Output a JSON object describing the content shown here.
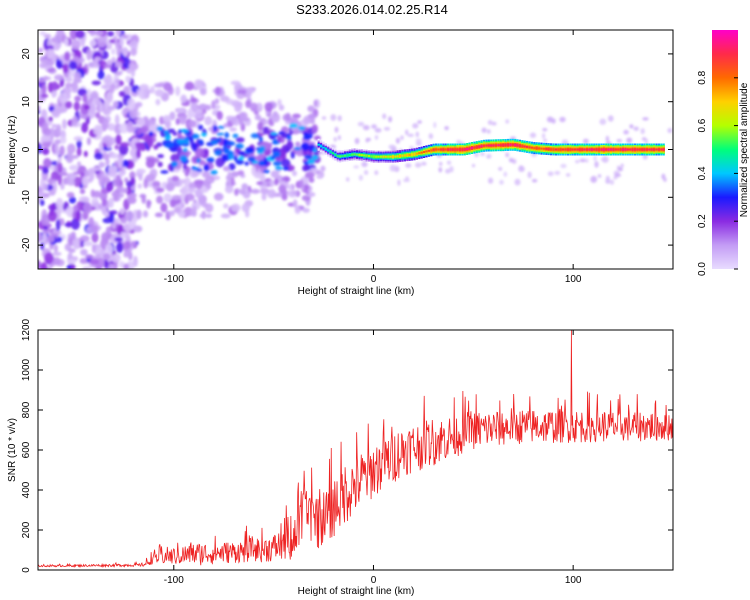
{
  "title": "S233.2026.014.02.25.R14",
  "chart_data": [
    {
      "type": "heatmap",
      "name": "spectrogram",
      "xlabel": "Height of straight line (km)",
      "ylabel": "Frequency (Hz)",
      "xlim": [
        -168,
        150
      ],
      "ylim": [
        -25,
        25
      ],
      "xticks": [
        -100,
        0,
        100
      ],
      "xtick_labels": [
        "-100",
        "0",
        "100"
      ],
      "yticks": [
        -20,
        -10,
        0,
        10,
        20
      ],
      "ytick_labels": [
        "-20",
        "-10",
        "0",
        "10",
        "20"
      ],
      "colorbar": {
        "label": "Normalized spectral amplitude",
        "range": [
          0,
          1
        ],
        "ticks": [
          0.0,
          0.2,
          0.4,
          0.6,
          0.8
        ],
        "tick_labels": [
          "0.0",
          "0.2",
          "0.4",
          "0.6",
          "0.8"
        ],
        "colors": [
          "#e8dcff",
          "#c39cf5",
          "#8a2be2",
          "#1a1aff",
          "#00c8ff",
          "#00ff7a",
          "#b4ff00",
          "#ffd000",
          "#ff6a00",
          "#ff2a4a",
          "#ff00c8"
        ]
      },
      "ridge": [
        {
          "x": -28,
          "f": 1.0,
          "a": 0.35
        },
        {
          "x": -18,
          "f": -1.5,
          "a": 0.45
        },
        {
          "x": -10,
          "f": -1.0,
          "a": 0.5
        },
        {
          "x": 0,
          "f": -1.5,
          "a": 0.55
        },
        {
          "x": 10,
          "f": -1.5,
          "a": 0.62
        },
        {
          "x": 20,
          "f": -1.0,
          "a": 0.68
        },
        {
          "x": 30,
          "f": 0.0,
          "a": 0.8
        },
        {
          "x": 45,
          "f": 0.0,
          "a": 0.9
        },
        {
          "x": 55,
          "f": 0.8,
          "a": 0.85
        },
        {
          "x": 70,
          "f": 1.0,
          "a": 0.88
        },
        {
          "x": 80,
          "f": 0.3,
          "a": 0.8
        },
        {
          "x": 90,
          "f": 0.0,
          "a": 0.82
        },
        {
          "x": 100,
          "f": 0.0,
          "a": 0.85
        },
        {
          "x": 115,
          "f": 0.0,
          "a": 0.88
        },
        {
          "x": 130,
          "f": 0.0,
          "a": 0.86
        },
        {
          "x": 145,
          "f": 0.0,
          "a": 0.84
        }
      ]
    },
    {
      "type": "line",
      "name": "snr",
      "xlabel": "Height of straight line (km)",
      "ylabel": "SNR (10 * v/v)",
      "xlim": [
        -168,
        150
      ],
      "ylim": [
        0,
        1200
      ],
      "xticks": [
        -100,
        0,
        100
      ],
      "xtick_labels": [
        "-100",
        "0",
        "100"
      ],
      "yticks": [
        0,
        200,
        400,
        600,
        800,
        1000,
        1200
      ],
      "ytick_labels": [
        "0",
        "200",
        "400",
        "600",
        "800",
        "1000",
        "1200"
      ],
      "color": "#ee2222",
      "envelope": [
        {
          "x": -168,
          "mean": 20,
          "spread": 8
        },
        {
          "x": -115,
          "mean": 25,
          "spread": 15
        },
        {
          "x": -110,
          "mean": 60,
          "spread": 60
        },
        {
          "x": -90,
          "mean": 80,
          "spread": 120
        },
        {
          "x": -70,
          "mean": 90,
          "spread": 110
        },
        {
          "x": -50,
          "mean": 110,
          "spread": 140
        },
        {
          "x": -40,
          "mean": 160,
          "spread": 220
        },
        {
          "x": -35,
          "mean": 280,
          "spread": 320
        },
        {
          "x": -25,
          "mean": 250,
          "spread": 300
        },
        {
          "x": -15,
          "mean": 380,
          "spread": 320
        },
        {
          "x": 0,
          "mean": 500,
          "spread": 280
        },
        {
          "x": 15,
          "mean": 600,
          "spread": 260
        },
        {
          "x": 30,
          "mean": 640,
          "spread": 240
        },
        {
          "x": 50,
          "mean": 700,
          "spread": 200
        },
        {
          "x": 75,
          "mean": 720,
          "spread": 180
        },
        {
          "x": 100,
          "mean": 720,
          "spread": 170
        },
        {
          "x": 125,
          "mean": 720,
          "spread": 160
        },
        {
          "x": 150,
          "mean": 720,
          "spread": 150
        }
      ],
      "peak": {
        "x": 99,
        "y": 1200
      }
    }
  ]
}
